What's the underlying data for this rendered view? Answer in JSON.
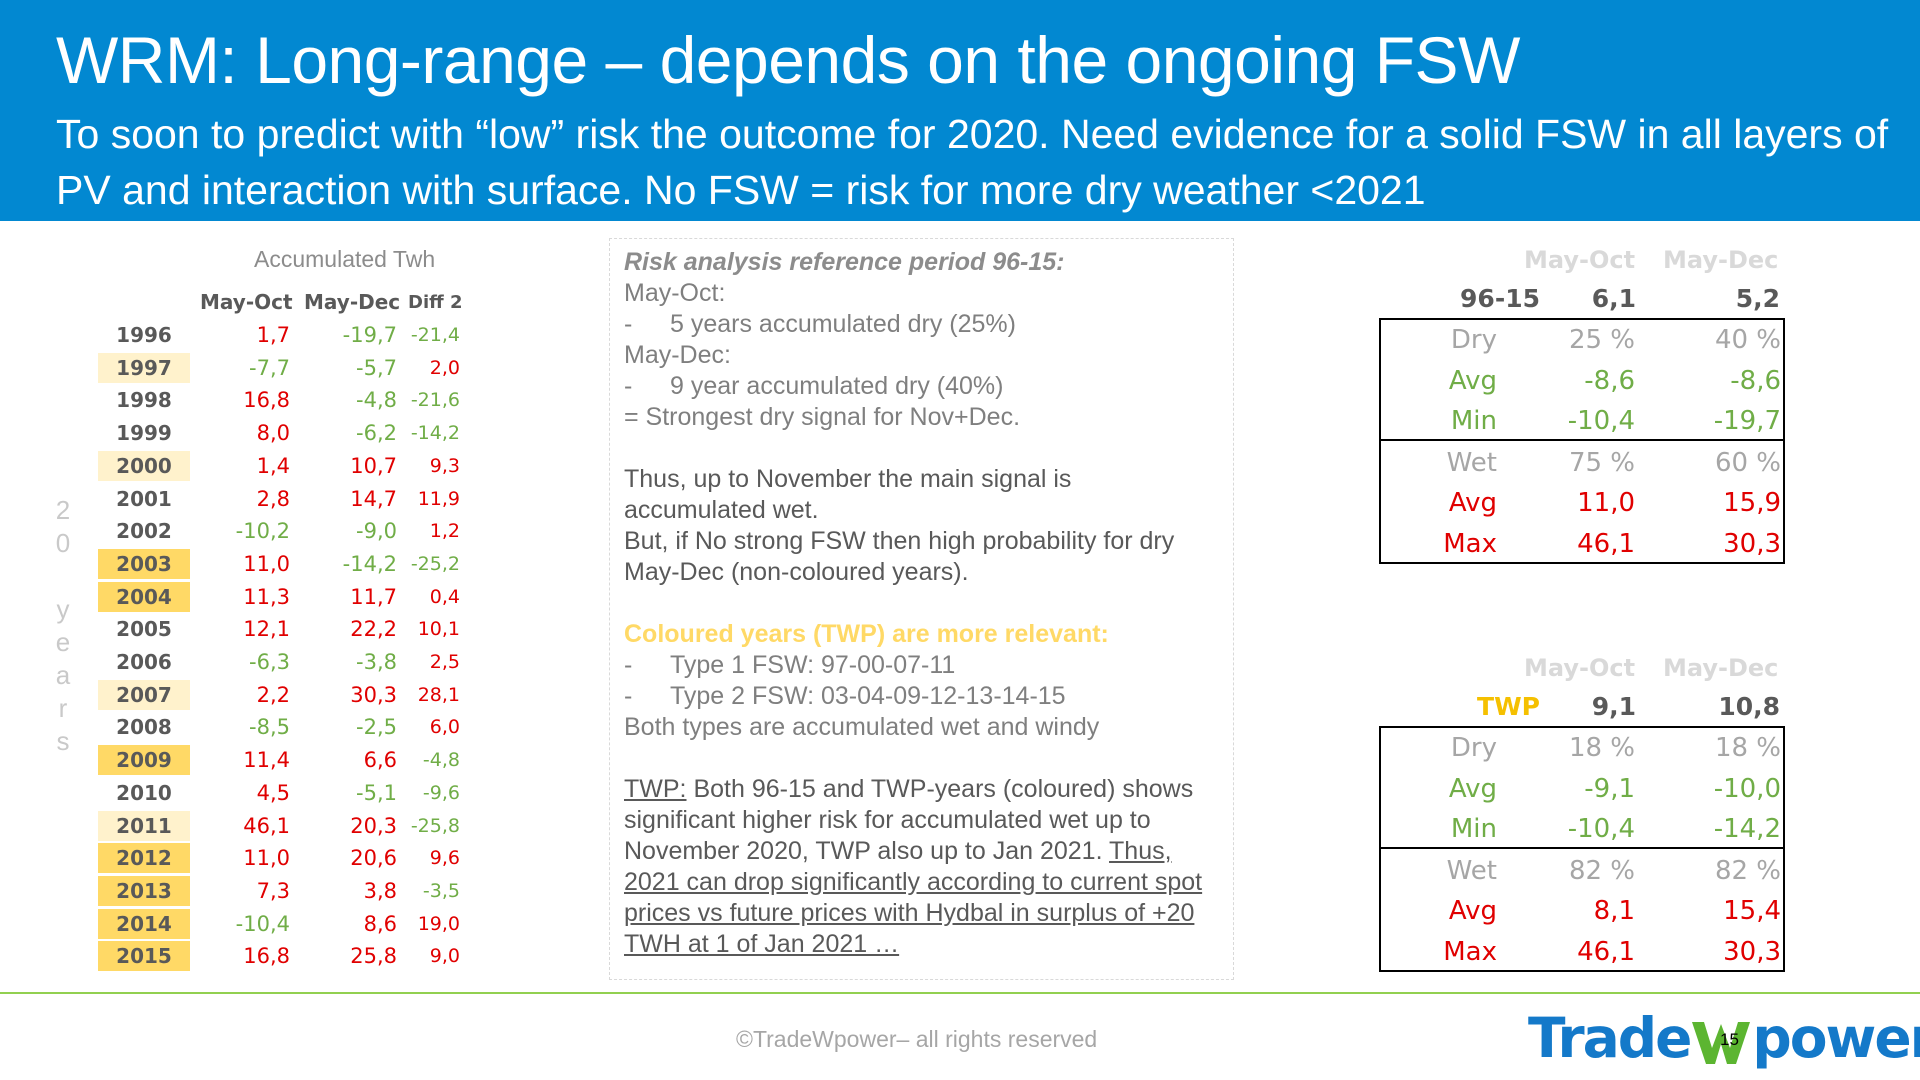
{
  "header": {
    "title": "WRM: Long-range – depends on the ongoing FSW",
    "subtitle": "To soon to predict with “low” risk the outcome for 2020. Need evidence for a solid FSW in all layers of PV and interaction with surface. No FSW = risk for more dry weather <2021"
  },
  "left_table": {
    "vertical_label": [
      "2",
      "0",
      "",
      "y",
      "e",
      "a",
      "r",
      "s"
    ],
    "title": "Accumulated Twh",
    "col1": "May-Oct",
    "col2": "May-Dec",
    "col3": "Diff 2",
    "rows": [
      {
        "year": "1996",
        "v1": "1,7",
        "v2": "-19,7",
        "v3": "-21,4",
        "hl": "none",
        "c1": "red",
        "c2": "green",
        "c3": "green"
      },
      {
        "year": "1997",
        "v1": "-7,7",
        "v2": "-5,7",
        "v3": "2,0",
        "hl": "light",
        "c1": "green",
        "c2": "green",
        "c3": "red"
      },
      {
        "year": "1998",
        "v1": "16,8",
        "v2": "-4,8",
        "v3": "-21,6",
        "hl": "none",
        "c1": "red",
        "c2": "green",
        "c3": "green"
      },
      {
        "year": "1999",
        "v1": "8,0",
        "v2": "-6,2",
        "v3": "-14,2",
        "hl": "none",
        "c1": "red",
        "c2": "green",
        "c3": "green"
      },
      {
        "year": "2000",
        "v1": "1,4",
        "v2": "10,7",
        "v3": "9,3",
        "hl": "light",
        "c1": "red",
        "c2": "red",
        "c3": "red"
      },
      {
        "year": "2001",
        "v1": "2,8",
        "v2": "14,7",
        "v3": "11,9",
        "hl": "none",
        "c1": "red",
        "c2": "red",
        "c3": "red"
      },
      {
        "year": "2002",
        "v1": "-10,2",
        "v2": "-9,0",
        "v3": "1,2",
        "hl": "none",
        "c1": "green",
        "c2": "green",
        "c3": "red"
      },
      {
        "year": "2003",
        "v1": "11,0",
        "v2": "-14,2",
        "v3": "-25,2",
        "hl": "gold",
        "c1": "red",
        "c2": "green",
        "c3": "green"
      },
      {
        "year": "2004",
        "v1": "11,3",
        "v2": "11,7",
        "v3": "0,4",
        "hl": "gold",
        "c1": "red",
        "c2": "red",
        "c3": "red"
      },
      {
        "year": "2005",
        "v1": "12,1",
        "v2": "22,2",
        "v3": "10,1",
        "hl": "none",
        "c1": "red",
        "c2": "red",
        "c3": "red"
      },
      {
        "year": "2006",
        "v1": "-6,3",
        "v2": "-3,8",
        "v3": "2,5",
        "hl": "none",
        "c1": "green",
        "c2": "green",
        "c3": "red"
      },
      {
        "year": "2007",
        "v1": "2,2",
        "v2": "30,3",
        "v3": "28,1",
        "hl": "light",
        "c1": "red",
        "c2": "red",
        "c3": "red"
      },
      {
        "year": "2008",
        "v1": "-8,5",
        "v2": "-2,5",
        "v3": "6,0",
        "hl": "none",
        "c1": "green",
        "c2": "green",
        "c3": "red"
      },
      {
        "year": "2009",
        "v1": "11,4",
        "v2": "6,6",
        "v3": "-4,8",
        "hl": "gold",
        "c1": "red",
        "c2": "red",
        "c3": "green"
      },
      {
        "year": "2010",
        "v1": "4,5",
        "v2": "-5,1",
        "v3": "-9,6",
        "hl": "none",
        "c1": "red",
        "c2": "green",
        "c3": "green"
      },
      {
        "year": "2011",
        "v1": "46,1",
        "v2": "20,3",
        "v3": "-25,8",
        "hl": "light",
        "c1": "red",
        "c2": "red",
        "c3": "green"
      },
      {
        "year": "2012",
        "v1": "11,0",
        "v2": "20,6",
        "v3": "9,6",
        "hl": "gold",
        "c1": "red",
        "c2": "red",
        "c3": "red"
      },
      {
        "year": "2013",
        "v1": "7,3",
        "v2": "3,8",
        "v3": "-3,5",
        "hl": "gold",
        "c1": "red",
        "c2": "red",
        "c3": "green"
      },
      {
        "year": "2014",
        "v1": "-10,4",
        "v2": "8,6",
        "v3": "19,0",
        "hl": "gold",
        "c1": "green",
        "c2": "red",
        "c3": "red"
      },
      {
        "year": "2015",
        "v1": "16,8",
        "v2": "25,8",
        "v3": "9,0",
        "hl": "gold",
        "c1": "red",
        "c2": "red",
        "c3": "red"
      }
    ]
  },
  "middle": {
    "heading": "Risk analysis reference period 96-15:",
    "l1": "May-Oct:",
    "l2": "5 years accumulated dry (25%)",
    "l3": "May-Dec:",
    "l4": "9 year accumulated dry (40%)",
    "l5": "= Strongest dry signal for Nov+Dec.",
    "l6": "Thus, up to November the main signal is accumulated wet.",
    "l7": "But, if No strong FSW then high probability for dry May-Dec (non-coloured years).",
    "gold_heading": "Coloured years (TWP) are more relevant:",
    "t1": "Type 1 FSW: 97-00-07-11",
    "t2": "Type 2 FSW: 03-04-09-12-13-14-15",
    "t3": "Both types are accumulated wet and windy",
    "twp_label": "TWP:",
    "twp_text": " Both 96-15 and TWP-years (coloured) shows significant higher risk for accumulated wet up to November 2020, TWP also up to Jan 2021.",
    "twp_u": "Thus, 2021 can drop significantly according to current spot prices vs future prices with Hydbal in surplus of +20 TWH at 1 of Jan 2021 …"
  },
  "right_tables": [
    {
      "col_a": "May-Oct",
      "col_b": "May-Dec",
      "label": "96-15",
      "label_color": "#595959",
      "a": "6,1",
      "b": "5,2",
      "rows": [
        {
          "lab": "Dry",
          "a": "25 %",
          "b": "40 %",
          "color": "#a6a6a6"
        },
        {
          "lab": "Avg",
          "a": "-8,6",
          "b": "-8,6",
          "color": "#70ad47"
        },
        {
          "lab": "Min",
          "a": "-10,4",
          "b": "-19,7",
          "color": "#70ad47"
        },
        {
          "lab": "Wet",
          "a": "75 %",
          "b": "60 %",
          "color": "#a6a6a6"
        },
        {
          "lab": "Avg",
          "a": "11,0",
          "b": "15,9",
          "color": "#e00000"
        },
        {
          "lab": "Max",
          "a": "46,1",
          "b": "30,3",
          "color": "#e00000"
        }
      ]
    },
    {
      "col_a": "May-Oct",
      "col_b": "May-Dec",
      "label": "TWP",
      "label_color": "#f5c000",
      "a": "9,1",
      "b": "10,8",
      "rows": [
        {
          "lab": "Dry",
          "a": "18 %",
          "b": "18 %",
          "color": "#a6a6a6"
        },
        {
          "lab": "Avg",
          "a": "-9,1",
          "b": "-10,0",
          "color": "#70ad47"
        },
        {
          "lab": "Min",
          "a": "-10,4",
          "b": "-14,2",
          "color": "#70ad47"
        },
        {
          "lab": "Wet",
          "a": "82 %",
          "b": "82 %",
          "color": "#a6a6a6"
        },
        {
          "lab": "Avg",
          "a": "8,1",
          "b": "15,4",
          "color": "#e00000"
        },
        {
          "lab": "Max",
          "a": "46,1",
          "b": "30,3",
          "color": "#e00000"
        }
      ]
    }
  ],
  "colors": {
    "header_bg": "#0288d1",
    "red": "#e00000",
    "green": "#70ad47",
    "highlight_light": "#fff2cc",
    "highlight_gold": "#ffd966",
    "footer_line": "#92d050"
  },
  "footer": {
    "copyright": "©TradeWpower– all rights reserved",
    "page": "15",
    "logo_a": "Trade",
    "logo_b": "power"
  }
}
